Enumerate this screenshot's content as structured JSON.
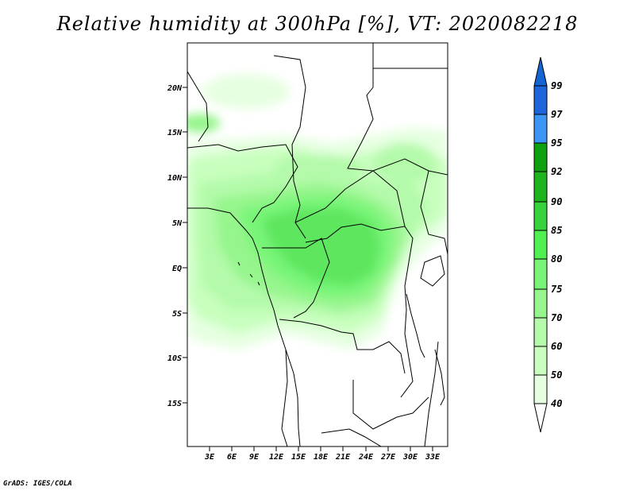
{
  "title": "Relative humidity at 300hPa [%], VT: 2020082218",
  "credit": "GrADS: IGES/COLA",
  "map": {
    "lat_ticks": [
      "20N",
      "15N",
      "10N",
      "5N",
      "EQ",
      "5S",
      "10S",
      "15S"
    ],
    "lon_ticks": [
      "3E",
      "6E",
      "9E",
      "12E",
      "15E",
      "18E",
      "21E",
      "24E",
      "27E",
      "30E",
      "33E"
    ]
  },
  "colorbar": {
    "labels": [
      "99",
      "97",
      "95",
      "92",
      "90",
      "85",
      "80",
      "75",
      "70",
      "60",
      "50",
      "40"
    ],
    "colors": {
      "c97_99": "#1e64dc",
      "c95_97": "#3c96f5",
      "c92_95": "#0fa00f",
      "c90_92": "#1eb41e",
      "c85_90": "#37d23c",
      "c80_85": "#50f050",
      "c75_80": "#78f578",
      "c70_75": "#96f58c",
      "c60_70": "#b4faaa",
      "c50_60": "#c8ffbe",
      "c40_50": "#e6ffe1",
      "top_arrow": "#1464d2",
      "bottom_arrow": "#ffffff"
    }
  }
}
